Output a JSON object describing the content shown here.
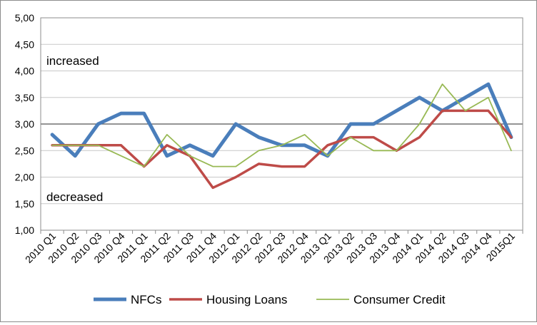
{
  "chart_data": {
    "type": "line",
    "title": "",
    "xlabel": "",
    "ylabel": "",
    "ylim": [
      1.0,
      5.0
    ],
    "y_ticks": [
      "1,00",
      "1,50",
      "2,00",
      "2,50",
      "3,00",
      "3,50",
      "4,00",
      "4,50",
      "5,00"
    ],
    "y_tick_values": [
      1.0,
      1.5,
      2.0,
      2.5,
      3.0,
      3.5,
      4.0,
      4.5,
      5.0
    ],
    "grid": "horizontal-major",
    "reference_line": 3.0,
    "legend_position": "bottom",
    "categories": [
      "2010 Q1",
      "2010 Q2",
      "2010 Q3",
      "2010 Q4",
      "2011 Q1",
      "2011 Q2",
      "2011 Q3",
      "2011 Q4",
      "2012 Q1",
      "2012 Q2",
      "2012 Q3",
      "2012 Q4",
      "2013 Q1",
      "2013 Q2",
      "2013 Q3",
      "2013 Q4",
      "2014 Q1",
      "2014 Q2",
      "2014 Q3",
      "2014 Q4",
      "2015Q1"
    ],
    "annotations": {
      "upper": "increased",
      "lower": "decreased"
    },
    "series": [
      {
        "name": "NFCs",
        "color": "#4a7ebb",
        "values": [
          2.8,
          2.4,
          3.0,
          3.2,
          3.2,
          2.4,
          2.6,
          2.4,
          3.0,
          2.75,
          2.6,
          2.6,
          2.4,
          3.0,
          3.0,
          3.25,
          3.5,
          3.25,
          3.5,
          3.75,
          2.75
        ]
      },
      {
        "name": "Housing Loans",
        "color": "#be4b48",
        "values": [
          2.6,
          2.6,
          2.6,
          2.6,
          2.2,
          2.6,
          2.4,
          1.8,
          2.0,
          2.25,
          2.2,
          2.2,
          2.6,
          2.75,
          2.75,
          2.5,
          2.75,
          3.25,
          3.25,
          3.25,
          2.75
        ]
      },
      {
        "name": "Consumer Credit",
        "color": "#98b954",
        "values": [
          2.6,
          2.6,
          2.6,
          2.4,
          2.2,
          2.8,
          2.4,
          2.2,
          2.2,
          2.5,
          2.6,
          2.8,
          2.4,
          2.75,
          2.5,
          2.5,
          3.0,
          3.75,
          3.25,
          3.5,
          2.5
        ]
      }
    ]
  }
}
